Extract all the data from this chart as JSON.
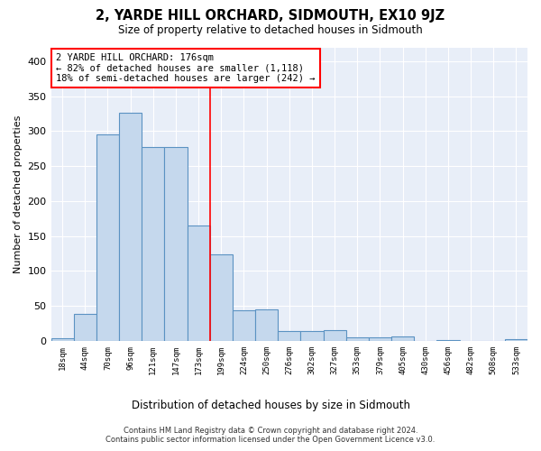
{
  "title": "2, YARDE HILL ORCHARD, SIDMOUTH, EX10 9JZ",
  "subtitle": "Size of property relative to detached houses in Sidmouth",
  "xlabel": "Distribution of detached houses by size in Sidmouth",
  "ylabel": "Number of detached properties",
  "bar_labels": [
    "18sqm",
    "44sqm",
    "70sqm",
    "96sqm",
    "121sqm",
    "147sqm",
    "173sqm",
    "199sqm",
    "224sqm",
    "250sqm",
    "276sqm",
    "302sqm",
    "327sqm",
    "353sqm",
    "379sqm",
    "405sqm",
    "430sqm",
    "456sqm",
    "482sqm",
    "508sqm",
    "533sqm"
  ],
  "bar_values": [
    4,
    38,
    295,
    327,
    278,
    278,
    165,
    124,
    44,
    45,
    14,
    14,
    15,
    5,
    5,
    6,
    0,
    1,
    0,
    0,
    2
  ],
  "bar_color": "#c5d8ed",
  "bar_edge_color": "#5b92c2",
  "annotation_line1": "2 YARDE HILL ORCHARD: 176sqm",
  "annotation_line2": "← 82% of detached houses are smaller (1,118)",
  "annotation_line3": "18% of semi-detached houses are larger (242) →",
  "vline_x": 6.5,
  "ylim": [
    0,
    420
  ],
  "yticks": [
    0,
    50,
    100,
    150,
    200,
    250,
    300,
    350,
    400
  ],
  "footer_line1": "Contains HM Land Registry data © Crown copyright and database right 2024.",
  "footer_line2": "Contains public sector information licensed under the Open Government Licence v3.0.",
  "bg_color": "#ffffff",
  "plot_bg_color": "#e8eef8"
}
